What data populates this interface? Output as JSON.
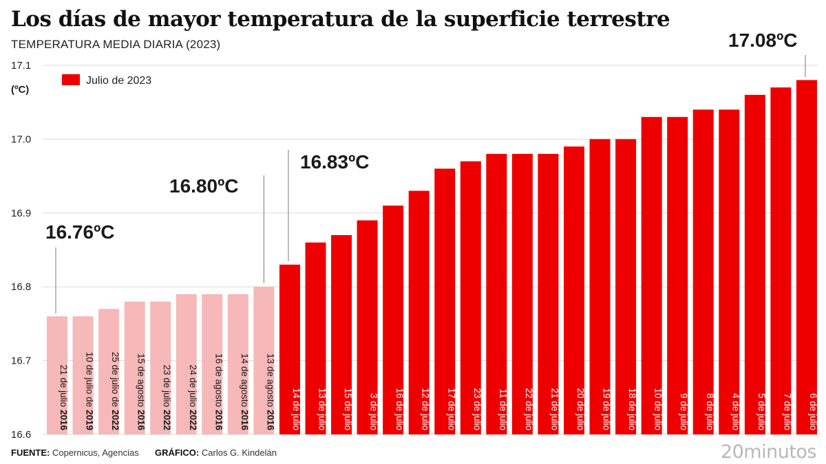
{
  "title": "Los días de mayor temperatura de la superficie terrestre",
  "subtitle": "TEMPERATURA MEDIA DIARIA (2023)",
  "footer": {
    "source_label": "FUENTE:",
    "source_value": "Copernicus, Agencias",
    "credit_label": "GRÁFICO:",
    "credit_value": "Carlos G. Kindelán"
  },
  "brand": "20minutos",
  "colors": {
    "highlight": "#ee0000",
    "other": "#f6b8b8",
    "text": "#222222",
    "grid": "#d9d9d9"
  },
  "chart_data": {
    "type": "bar",
    "ylabel": "(ºC)",
    "ylim": [
      16.6,
      17.1
    ],
    "yticks": [
      "16.6",
      "16.7",
      "16.8",
      "16.9",
      "17.0",
      "17.1"
    ],
    "legend": {
      "label": "Julio de 2023",
      "placement": "top-left"
    },
    "grid": true,
    "bars": [
      {
        "day": "21 de julio",
        "year": "2016",
        "value": 16.76,
        "series": "other"
      },
      {
        "day": "10 de julio de",
        "year": "2019",
        "value": 16.76,
        "series": "other"
      },
      {
        "day": "25 de julio de",
        "year": "2022",
        "value": 16.77,
        "series": "other"
      },
      {
        "day": "15 de agosto",
        "year": "2016",
        "value": 16.78,
        "series": "other"
      },
      {
        "day": "23 de julio",
        "year": "2022",
        "value": 16.78,
        "series": "other"
      },
      {
        "day": "24 de julio",
        "year": "2022",
        "value": 16.79,
        "series": "other"
      },
      {
        "day": "16 de agosto",
        "year": "2016",
        "value": 16.79,
        "series": "other"
      },
      {
        "day": "14 de agosto",
        "year": "2016",
        "value": 16.79,
        "series": "other"
      },
      {
        "day": "13 de agosto",
        "year": "2016",
        "value": 16.8,
        "series": "other"
      },
      {
        "day": "14 de julio",
        "year": "",
        "value": 16.83,
        "series": "highlight"
      },
      {
        "day": "13 de julio",
        "year": "",
        "value": 16.86,
        "series": "highlight"
      },
      {
        "day": "15 de julio",
        "year": "",
        "value": 16.87,
        "series": "highlight"
      },
      {
        "day": "3 de julio",
        "year": "",
        "value": 16.89,
        "series": "highlight"
      },
      {
        "day": "16 de julio",
        "year": "",
        "value": 16.91,
        "series": "highlight"
      },
      {
        "day": "12 de julio",
        "year": "",
        "value": 16.93,
        "series": "highlight"
      },
      {
        "day": "17 de julio",
        "year": "",
        "value": 16.96,
        "series": "highlight"
      },
      {
        "day": "23 de julio",
        "year": "",
        "value": 16.97,
        "series": "highlight"
      },
      {
        "day": "11 de julio",
        "year": "",
        "value": 16.98,
        "series": "highlight"
      },
      {
        "day": "22 de julio",
        "year": "",
        "value": 16.98,
        "series": "highlight"
      },
      {
        "day": "21 de julio",
        "year": "",
        "value": 16.98,
        "series": "highlight"
      },
      {
        "day": "20 de julio",
        "year": "",
        "value": 16.99,
        "series": "highlight"
      },
      {
        "day": "19 de julio",
        "year": "",
        "value": 17.0,
        "series": "highlight"
      },
      {
        "day": "18 de julio",
        "year": "",
        "value": 17.0,
        "series": "highlight"
      },
      {
        "day": "10 de julio",
        "year": "",
        "value": 17.03,
        "series": "highlight"
      },
      {
        "day": "9 de julio",
        "year": "",
        "value": 17.03,
        "series": "highlight"
      },
      {
        "day": "8 de julio",
        "year": "",
        "value": 17.04,
        "series": "highlight"
      },
      {
        "day": "4 de julio",
        "year": "",
        "value": 17.04,
        "series": "highlight"
      },
      {
        "day": "5 de julio",
        "year": "",
        "value": 17.06,
        "series": "highlight"
      },
      {
        "day": "7 de julio",
        "year": "",
        "value": 17.07,
        "series": "highlight"
      },
      {
        "day": "6 de julio",
        "year": "",
        "value": 17.08,
        "series": "highlight"
      }
    ],
    "annotations": [
      {
        "text": "16.76ºC",
        "bar_index": 0
      },
      {
        "text": "16.80ºC",
        "bar_index": 8
      },
      {
        "text": "16.83ºC",
        "bar_index": 9
      },
      {
        "text": "17.08ºC",
        "bar_index": 29
      }
    ]
  }
}
